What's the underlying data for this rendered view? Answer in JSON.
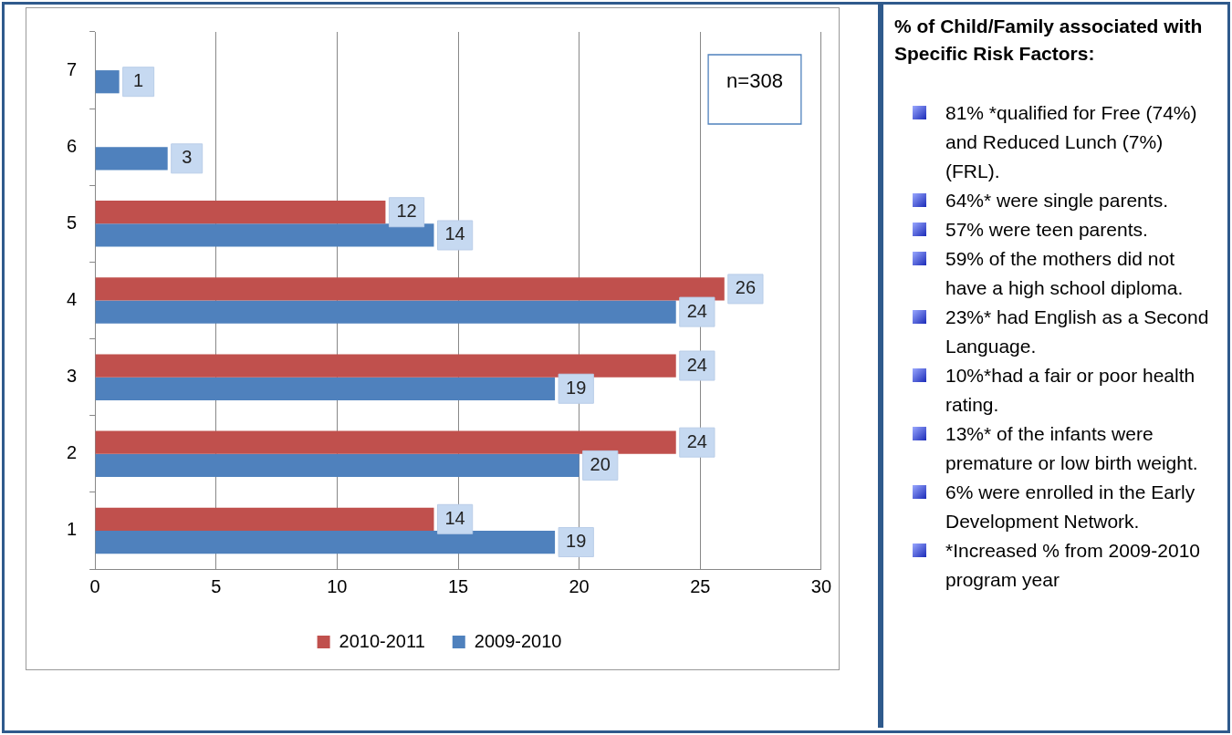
{
  "chart_data": [
    {
      "type": "bar",
      "orientation": "horizontal",
      "categories": [
        "7",
        "6",
        "5",
        "4",
        "3",
        "2",
        "1"
      ],
      "series": [
        {
          "name": "2010-2011",
          "color": "#c0504d",
          "values": [
            null,
            null,
            12,
            26,
            24,
            24,
            14
          ]
        },
        {
          "name": "2009-2010",
          "color": "#4f81bd",
          "values": [
            1,
            3,
            14,
            24,
            19,
            20,
            19
          ]
        }
      ],
      "xlim": [
        0,
        30
      ],
      "xticks": [
        0,
        5,
        10,
        15,
        20,
        25,
        30
      ],
      "grid": "x",
      "legend": "bottom",
      "data_labels": true,
      "annotations": [
        "n=308"
      ]
    },
    {
      "type": "other",
      "title": "% of Child/Family associated with Specific Risk Factors:",
      "annotations": [
        "81% *qualified for Free (74%) and Reduced Lunch (7%) (FRL).",
        "64%* were single parents.",
        "57% were teen parents.",
        "59% of the mothers did not have a high school diploma.",
        "23%* had English as a Second Language.",
        "10%*had a fair or poor health rating.",
        "13%* of the infants were premature or low birth weight.",
        "6% were enrolled in the Early Development Network.",
        "*Increased % from 2009-2010 program year"
      ]
    }
  ]
}
